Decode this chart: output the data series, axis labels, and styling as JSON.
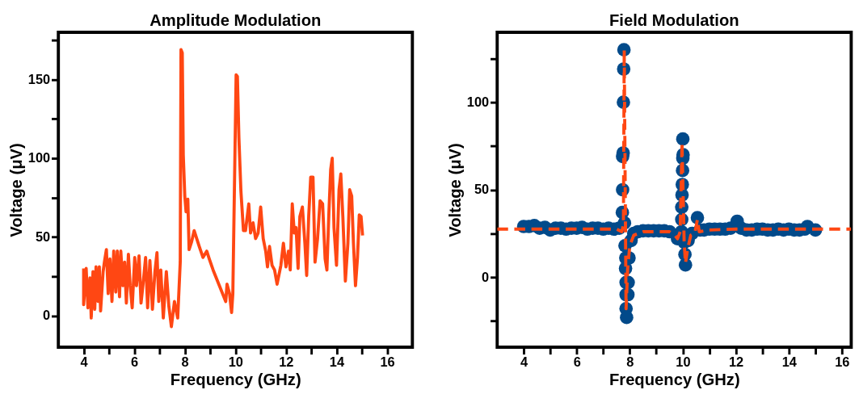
{
  "chart_data": [
    {
      "type": "line",
      "title": "Amplitude Modulation",
      "xlabel": "Frequency (GHz)",
      "ylabel": "Voltage (μV)",
      "color": "#ff4713",
      "x": [
        4.0,
        4.0,
        4.1,
        4.17,
        4.25,
        4.3,
        4.37,
        4.44,
        4.49,
        4.57,
        4.62,
        4.67,
        4.77,
        4.82,
        4.9,
        4.97,
        5.04,
        5.12,
        5.19,
        5.27,
        5.33,
        5.42,
        5.47,
        5.55,
        5.62,
        5.69,
        5.77,
        5.84,
        5.92,
        6.02,
        6.09,
        6.19,
        6.27,
        6.35,
        6.45,
        6.53,
        6.62,
        6.72,
        6.82,
        6.9,
        6.97,
        7.05,
        7.15,
        7.27,
        7.37,
        7.47,
        7.59,
        7.72,
        7.82,
        7.85,
        7.9,
        7.94,
        8.0,
        8.05,
        8.12,
        8.17,
        8.27,
        8.37,
        8.47,
        8.57,
        8.72,
        8.87,
        8.97,
        9.12,
        9.37,
        9.62,
        9.67,
        9.77,
        9.85,
        9.9,
        10.03,
        10.08,
        10.14,
        10.22,
        10.32,
        10.4,
        10.47,
        10.53,
        10.6,
        10.7,
        10.8,
        10.9,
        11.0,
        11.1,
        11.2,
        11.27,
        11.35,
        11.45,
        11.55,
        11.65,
        11.8,
        11.9,
        12.0,
        12.1,
        12.17,
        12.25,
        12.33,
        12.4,
        12.48,
        12.55,
        12.65,
        12.75,
        12.82,
        12.9,
        12.98,
        13.07,
        13.15,
        13.25,
        13.35,
        13.45,
        13.55,
        13.62,
        13.7,
        13.77,
        13.83,
        13.9,
        14.0,
        14.1,
        14.17,
        14.25,
        14.35,
        14.45,
        14.52,
        14.6,
        14.67,
        14.75,
        14.83,
        14.9,
        14.97,
        15.03
      ],
      "values": [
        30,
        7,
        30,
        5,
        24,
        -1.5,
        28,
        4,
        31,
        9,
        31,
        3,
        28,
        34,
        42,
        14,
        36,
        9,
        41,
        15,
        41,
        12,
        41,
        19,
        34,
        8,
        39,
        19,
        5,
        37,
        19,
        38,
        8,
        20,
        37,
        5,
        35,
        4,
        28,
        40,
        9,
        29,
        -1.5,
        28,
        6,
        -7,
        9,
        -1.5,
        34,
        169,
        167,
        102,
        76,
        66,
        74,
        42,
        47,
        54,
        49,
        44,
        37,
        41,
        36,
        29,
        19,
        9,
        20,
        14,
        2,
        14,
        153,
        152,
        113,
        79,
        54,
        54,
        63,
        71,
        52.5,
        59,
        49,
        52.5,
        69,
        49,
        41,
        31,
        44,
        32,
        29,
        20,
        32,
        46,
        31,
        41,
        29,
        71,
        52.5,
        56,
        30,
        63,
        69,
        46,
        25.5,
        63,
        88,
        88,
        34,
        49,
        73,
        71,
        36,
        29,
        66,
        93,
        100,
        56,
        32,
        80,
        90,
        63,
        22,
        46,
        80,
        76,
        46,
        19,
        37,
        64,
        63,
        51
      ],
      "xlim": [
        3,
        17
      ],
      "xticks": [
        4,
        {
          "value": 5,
          "label": null
        },
        6,
        {
          "value": 7,
          "label": null
        },
        8,
        {
          "value": 9,
          "label": null
        },
        10,
        {
          "value": 11,
          "label": null
        },
        12,
        {
          "value": 13,
          "label": null
        },
        14,
        {
          "value": 15,
          "label": null
        },
        16
      ],
      "ylim": [
        -20,
        180
      ],
      "yticks": [
        0,
        {
          "value": 25,
          "label": null
        },
        50,
        {
          "value": 75,
          "label": null
        },
        100,
        {
          "value": 125,
          "label": null
        },
        150,
        {
          "value": 175,
          "label": null
        }
      ],
      "grid": false,
      "line_style": "solid"
    },
    {
      "type": "scatter",
      "title": "Field Modulation",
      "xlabel": "Frequency (GHz)",
      "ylabel": "Voltage (μV)",
      "series": [
        {
          "type": "scatter",
          "color": "#024a8a",
          "marker": "circle",
          "x": [
            4.0,
            4.2,
            4.4,
            4.6,
            4.8,
            5.0,
            5.2,
            5.4,
            5.6,
            5.8,
            6.0,
            6.2,
            6.4,
            6.6,
            6.8,
            7.0,
            7.2,
            7.4,
            7.6,
            7.72,
            7.73,
            7.73,
            7.75,
            7.76,
            7.77,
            7.78,
            7.8,
            7.82,
            7.85,
            7.84,
            7.86,
            7.86,
            7.86,
            7.88,
            7.93,
            7.94,
            7.97,
            8.05,
            8.15,
            8.3,
            8.5,
            8.7,
            8.9,
            9.1,
            9.3,
            9.5,
            9.8,
            9.95,
            9.96,
            9.96,
            9.97,
            9.98,
            9.99,
            10.0,
            10.01,
            10.0,
            10.05,
            10.08,
            10.1,
            10.2,
            10.35,
            10.55,
            10.65,
            10.8,
            11.0,
            11.2,
            11.4,
            11.6,
            11.8,
            12.05,
            12.2,
            12.4,
            12.6,
            12.8,
            13.0,
            13.2,
            13.4,
            13.6,
            13.8,
            14.0,
            14.2,
            14.4,
            14.6,
            14.7,
            15.0
          ],
          "values": [
            29,
            29,
            29.5,
            28,
            28.5,
            27,
            28,
            28,
            27.5,
            28,
            28,
            28.5,
            27.5,
            28,
            28,
            27.5,
            28,
            27.5,
            28,
            37,
            50,
            69,
            71,
            100,
            119,
            130,
            31,
            18,
            11,
            5,
            -3,
            -10,
            -18,
            -23,
            -10,
            -3,
            11,
            21,
            25,
            26,
            26.5,
            26.5,
            26.5,
            26.5,
            26.5,
            26,
            22,
            26,
            33,
            40,
            47,
            53,
            61,
            68,
            70,
            79,
            20,
            13,
            7,
            21,
            25,
            34,
            27,
            27,
            27.5,
            27.5,
            27.5,
            27.5,
            28,
            32,
            28,
            27,
            27,
            27.5,
            27.5,
            27,
            27,
            27.5,
            27,
            27.5,
            27,
            27,
            27.5,
            29,
            27
          ]
        },
        {
          "type": "line",
          "color": "#ff4713",
          "line_style": "dashed",
          "x": [
            3,
            7.5,
            7.7,
            7.76,
            7.79,
            7.86,
            7.92,
            8.0,
            8.15,
            8.5,
            9.5,
            9.7,
            9.8,
            9.9,
            9.97,
            10.05,
            10.1,
            10.18,
            10.3,
            10.45,
            10.55,
            10.62,
            11,
            12,
            16.35
          ],
          "values": [
            27.5,
            27.5,
            26,
            30,
            130,
            -18,
            5,
            18,
            24,
            26,
            26,
            24,
            22,
            26,
            77,
            20,
            8,
            16,
            24,
            25,
            33,
            26,
            27,
            27.5,
            27.5
          ]
        }
      ],
      "xlim": [
        3,
        16.35
      ],
      "xticks": [
        4,
        {
          "value": 5,
          "label": null
        },
        6,
        {
          "value": 7,
          "label": null
        },
        8,
        {
          "value": 9,
          "label": null
        },
        10,
        {
          "value": 11,
          "label": null
        },
        12,
        {
          "value": 13,
          "label": null
        },
        14,
        {
          "value": 15,
          "label": null
        },
        16
      ],
      "ylim": [
        -40,
        140
      ],
      "yticks": [
        {
          "value": -25,
          "label": null
        },
        0,
        {
          "value": 25,
          "label": null
        },
        50,
        {
          "value": 75,
          "label": null
        },
        100,
        {
          "value": 125,
          "label": null
        }
      ],
      "grid": false
    }
  ]
}
